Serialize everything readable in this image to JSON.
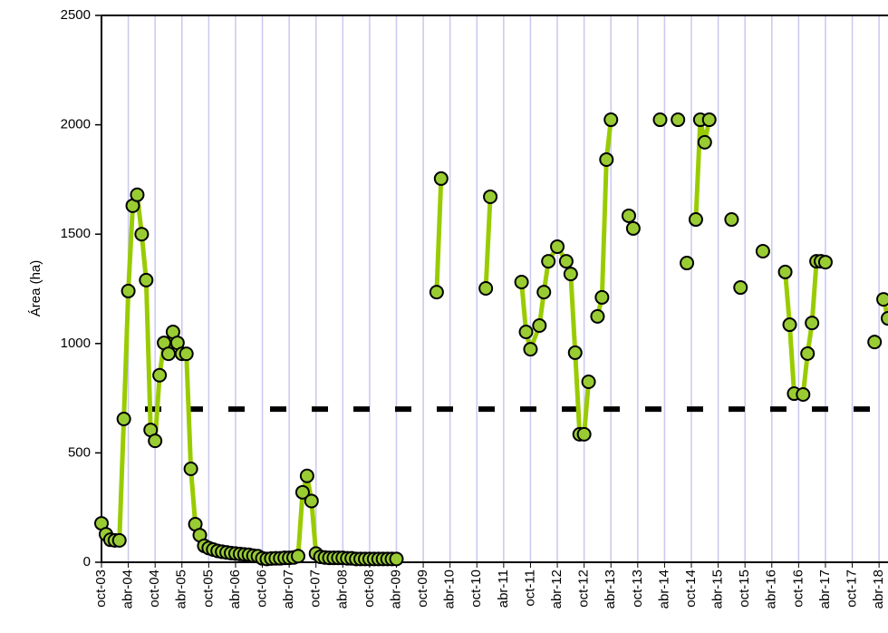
{
  "chart_data": {
    "type": "line",
    "y_label": "Área (ha)",
    "xlim": [
      0,
      176
    ],
    "ylim": [
      0,
      2500
    ],
    "yticks": [
      0,
      500,
      1000,
      1500,
      2000,
      2500
    ],
    "xticks": [
      {
        "value": 0,
        "label": "oct-03"
      },
      {
        "value": 6,
        "label": "abr-04"
      },
      {
        "value": 12,
        "label": "oct-04"
      },
      {
        "value": 18,
        "label": "abr-05"
      },
      {
        "value": 24,
        "label": "oct-05"
      },
      {
        "value": 30,
        "label": "abr-06"
      },
      {
        "value": 36,
        "label": "oct-06"
      },
      {
        "value": 42,
        "label": "abr-07"
      },
      {
        "value": 48,
        "label": "oct-07"
      },
      {
        "value": 54,
        "label": "abr-08"
      },
      {
        "value": 60,
        "label": "oct-08"
      },
      {
        "value": 66,
        "label": "abr-09"
      },
      {
        "value": 72,
        "label": "oct-09"
      },
      {
        "value": 78,
        "label": "abr-10"
      },
      {
        "value": 84,
        "label": "oct-10"
      },
      {
        "value": 90,
        "label": "abr-11"
      },
      {
        "value": 96,
        "label": "oct-11"
      },
      {
        "value": 102,
        "label": "abr-12"
      },
      {
        "value": 108,
        "label": "oct-12"
      },
      {
        "value": 114,
        "label": "abr-13"
      },
      {
        "value": 120,
        "label": "oct-13"
      },
      {
        "value": 126,
        "label": "abr-14"
      },
      {
        "value": 132,
        "label": "oct-14"
      },
      {
        "value": 138,
        "label": "abr-15"
      },
      {
        "value": 144,
        "label": "oct-15"
      },
      {
        "value": 150,
        "label": "abr-16"
      },
      {
        "value": 156,
        "label": "oct-16"
      },
      {
        "value": 162,
        "label": "abr-17"
      },
      {
        "value": 168,
        "label": "oct-17"
      },
      {
        "value": 174,
        "label": "abr-18"
      }
    ],
    "grid": true,
    "color": "#99cc00",
    "marker_color": "#99cc33",
    "threshold": 700,
    "threshold_color": "#000000",
    "x": [
      0,
      1,
      2,
      3,
      4,
      5,
      6,
      7,
      8,
      9,
      10,
      11,
      12,
      13,
      14,
      15,
      16,
      17,
      18,
      19,
      20,
      21,
      22,
      23,
      24,
      25,
      26,
      27,
      28,
      29,
      30,
      31,
      32,
      33,
      34,
      35,
      36,
      37,
      38,
      39,
      40,
      41,
      42,
      43,
      44,
      45,
      46,
      47,
      48,
      49,
      50,
      51,
      52,
      53,
      54,
      55,
      56,
      57,
      58,
      59,
      60,
      61,
      62,
      63,
      64,
      65,
      66,
      70,
      75,
      76,
      80,
      86,
      87,
      90,
      94,
      95,
      96,
      98,
      99,
      100,
      102,
      104,
      105,
      106,
      107,
      108,
      109,
      110,
      111,
      112,
      113,
      114,
      116,
      118,
      119,
      122,
      125,
      127,
      129,
      130,
      131,
      132,
      133,
      134,
      135,
      136,
      138,
      141,
      142,
      143,
      145,
      148,
      150,
      153,
      154,
      155,
      157,
      158,
      159,
      160,
      161,
      162,
      167,
      173,
      174,
      175,
      176
    ],
    "values": [
      178,
      128,
      103,
      100,
      100,
      655,
      1240,
      1630,
      1680,
      1500,
      1290,
      605,
      555,
      855,
      1003,
      953,
      1053,
      1003,
      953,
      953,
      427,
      174,
      124,
      75,
      65,
      58,
      52,
      48,
      45,
      42,
      40,
      38,
      36,
      34,
      30,
      28,
      18,
      15,
      17,
      18,
      18,
      20,
      20,
      22,
      28,
      320,
      395,
      280,
      40,
      25,
      22,
      20,
      20,
      20,
      20,
      18,
      18,
      15,
      15,
      15,
      15,
      15,
      15,
      15,
      15,
      15,
      15,
      null,
      1235,
      1754,
      null,
      1252,
      1671,
      null,
      1281,
      1053,
      974,
      1082,
      1235,
      1376,
      1443,
      1376,
      1318,
      958,
      585,
      585,
      825,
      null,
      1124,
      1211,
      1841,
      2023,
      null,
      1584,
      1526,
      null,
      2023,
      null,
      2023,
      null,
      1368,
      null,
      1567,
      2023,
      1920,
      2023,
      null,
      1567,
      null,
      1256,
      null,
      1422,
      null,
      1327,
      1086,
      771,
      767,
      954,
      1094,
      1376,
      1376,
      1372,
      null,
      1007,
      null,
      1202,
      1115
    ]
  }
}
